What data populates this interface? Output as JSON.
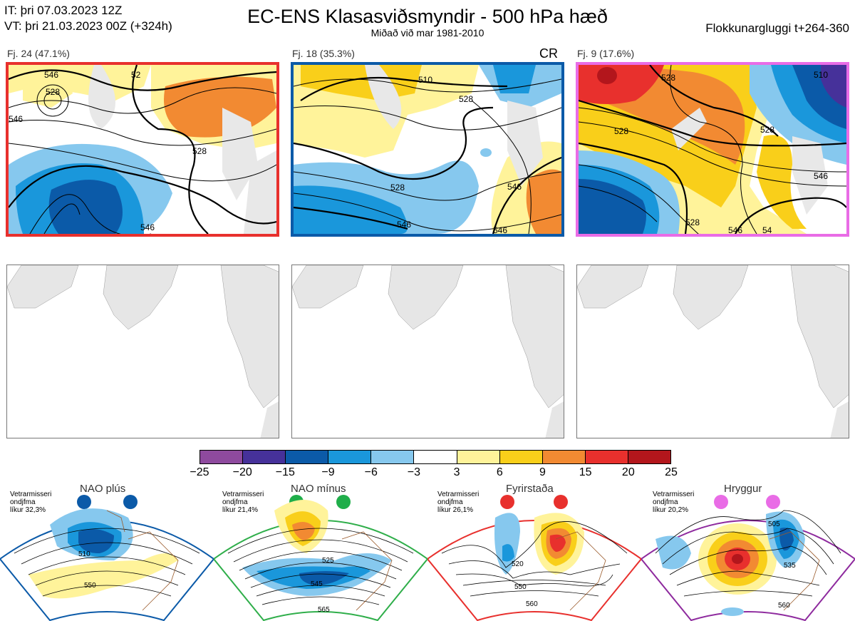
{
  "header": {
    "it_line": "IT: þri 07.03.2023 12Z",
    "vt_line": "VT: þri 21.03.2023 00Z  (+324h)",
    "title": "EC-ENS Klasasviðsmyndir - 500 hPa hæð",
    "subtitle": "Miðað við mar 1981-2010",
    "window": "Flokkunargluggi t+264-360"
  },
  "clusters": [
    {
      "label": "Fj. 24 (47.1%)",
      "tag": "",
      "frame_color": "#e8302d",
      "contours": [
        "546",
        "528",
        "52",
        "528",
        "546",
        "546"
      ]
    },
    {
      "label": "Fj. 18 (35.3%)",
      "tag": "CR",
      "frame_color": "#0b5aa8",
      "contours": [
        "510",
        "528",
        "528",
        "546",
        "546",
        "546"
      ]
    },
    {
      "label": "Fj. 9 (17.6%)",
      "tag": "",
      "frame_color": "#e96ce6",
      "contours": [
        "528",
        "528",
        "510",
        "528",
        "546",
        "528",
        "546",
        "54"
      ]
    }
  ],
  "colorbar": {
    "colors": [
      "#8e4a9e",
      "#46319a",
      "#0b5aa8",
      "#1a97db",
      "#86c8ee",
      "#ffffff",
      "#fff39a",
      "#f9cf1a",
      "#f28a32",
      "#e8302d",
      "#b3161c"
    ],
    "ticks": [
      "−25",
      "−20",
      "−15",
      "−9",
      "−6",
      "−3",
      "3",
      "6",
      "9",
      "15",
      "20",
      "25"
    ]
  },
  "regimes": [
    {
      "title": "NAO plús",
      "note": [
        "Vetrarmisseri",
        "ondjfma",
        "líkur 32,3%"
      ],
      "dot_color": "#0b5aa8",
      "frame_color": "#0b5aa8",
      "contours": [
        "510",
        "550"
      ]
    },
    {
      "title": "NAO mínus",
      "note": [
        "Vetrarmisseri",
        "ondjfma",
        "líkur 21,4%"
      ],
      "dot_color": "#1fae4a",
      "frame_color": "#2fae4a",
      "contours": [
        "525",
        "545",
        "565"
      ]
    },
    {
      "title": "Fyrirstaða",
      "note": [
        "Vetrarmisseri",
        "ondjfma",
        "líkur 26,1%"
      ],
      "dot_color": "#e8302d",
      "frame_color": "#e8302d",
      "contours": [
        "520",
        "550",
        "560"
      ]
    },
    {
      "title": "Hryggur",
      "note": [
        "Vetrarmisseri",
        "ondjfma",
        "líkur 20,2%"
      ],
      "dot_color": "#e96ce6",
      "frame_color": "#8e2a9e",
      "contours": [
        "505",
        "535",
        "560"
      ]
    }
  ]
}
